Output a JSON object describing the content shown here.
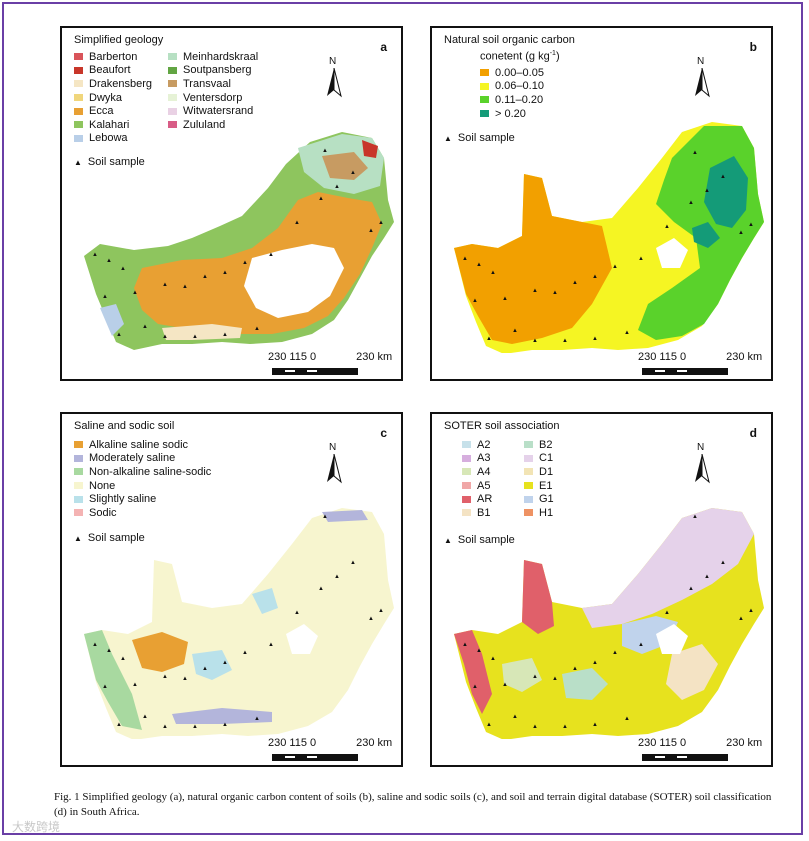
{
  "panel_a": {
    "title": "Simplified geology",
    "letter": "a",
    "legend": [
      {
        "label": "Barberton",
        "color": "#d9545a"
      },
      {
        "label": "Beaufort",
        "color": "#c8362a"
      },
      {
        "label": "Drakensberg",
        "color": "#f5e6c4"
      },
      {
        "label": "Dwyka",
        "color": "#f0d67c"
      },
      {
        "label": "Ecca",
        "color": "#e8a033"
      },
      {
        "label": "Kalahari",
        "color": "#8ec55e"
      },
      {
        "label": "Lebowa",
        "color": "#b9cfe8"
      },
      {
        "label": "Meinhardskraal",
        "color": "#b7e0c3"
      },
      {
        "label": "Soutpansberg",
        "color": "#62a543"
      },
      {
        "label": "Transvaal",
        "color": "#c79b62"
      },
      {
        "label": "Ventersdorp",
        "color": "#e6f2d6"
      },
      {
        "label": "Witwatersrand",
        "color": "#e9d1e4"
      },
      {
        "label": "Zululand",
        "color": "#d85c86"
      }
    ],
    "soil_sample": "Soil sample"
  },
  "panel_b": {
    "title_line1": "Natural soil organic carbon",
    "title_line2": "conetent (g kg",
    "title_sup": "-1",
    "title_end": ")",
    "letter": "b",
    "legend": [
      {
        "label": "0.00–0.05",
        "color": "#f2a000"
      },
      {
        "label": "0.06–0.10",
        "color": "#f5f523"
      },
      {
        "label": "0.11–0.20",
        "color": "#5ad22b"
      },
      {
        "label": "> 0.20",
        "color": "#149b78"
      }
    ],
    "soil_sample": "Soil sample"
  },
  "panel_c": {
    "title": "Saline and sodic soil",
    "letter": "c",
    "legend": [
      {
        "label": "Alkaline saline sodic",
        "color": "#e8a033"
      },
      {
        "label": "Moderately saline",
        "color": "#b3b5db"
      },
      {
        "label": "Non-alkaline saline-sodic",
        "color": "#a8d9a0"
      },
      {
        "label": "None",
        "color": "#f7f5cf"
      },
      {
        "label": "Slightly saline",
        "color": "#b9e1ea"
      },
      {
        "label": "Sodic",
        "color": "#f4b3b3"
      }
    ],
    "soil_sample": "Soil sample"
  },
  "panel_d": {
    "title": "SOTER soil association",
    "letter": "d",
    "legend_col1": [
      {
        "label": "A2",
        "color": "#c7e1ea"
      },
      {
        "label": "A3",
        "color": "#d6aede"
      },
      {
        "label": "A4",
        "color": "#d7e7b7"
      },
      {
        "label": "A5",
        "color": "#f0a7a7"
      },
      {
        "label": "AR",
        "color": "#e0606a"
      },
      {
        "label": "B1",
        "color": "#f4e3c4"
      }
    ],
    "legend_col2": [
      {
        "label": "B2",
        "color": "#b9dfc8"
      },
      {
        "label": "C1",
        "color": "#e5d2ea"
      },
      {
        "label": "D1",
        "color": "#f2e4b5"
      },
      {
        "label": "E1",
        "color": "#e7e21e"
      },
      {
        "label": "G1",
        "color": "#c0d3ec"
      },
      {
        "label": "H1",
        "color": "#ee9263"
      }
    ],
    "soil_sample": "Soil sample"
  },
  "north_label": "N",
  "scale": {
    "left": "230 115",
    "zero": "0",
    "right": "230 km"
  },
  "caption": "Fig. 1   Simplified geology (a), natural organic carbon content of soils (b), saline and sodic soils (c), and soil and terrain digital database (SOTER) soil classification (d) in South Africa.",
  "watermark": "大数跨境"
}
